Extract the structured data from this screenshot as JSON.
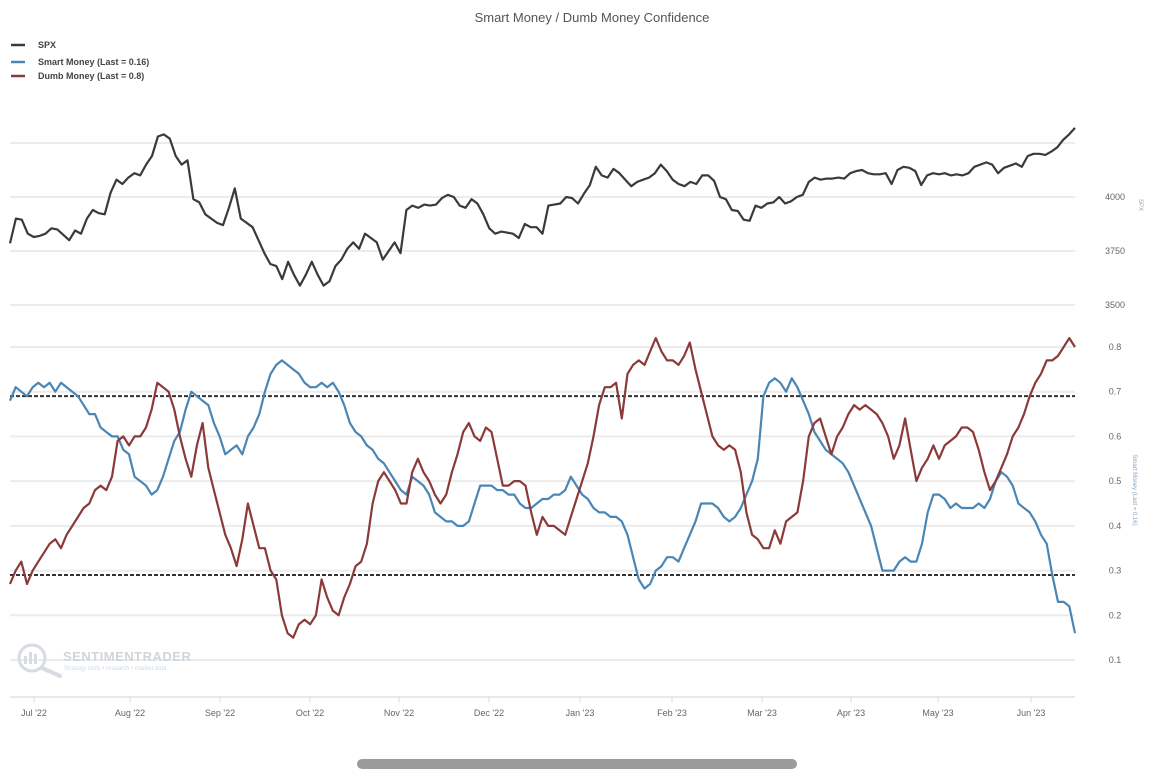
{
  "chart_data": {
    "type": "line",
    "title": "Smart Money / Dumb Money Confidence",
    "legend": {
      "placement": "top-left",
      "entries": [
        {
          "name": "SPX",
          "color": "#3a3a3a"
        },
        {
          "name": "Smart Money (Last = 0.16)",
          "color": "#4a86b5"
        },
        {
          "name": "Dumb Money (Last = 0.8)",
          "color": "#8b3a3a"
        }
      ]
    },
    "x_ticks": [
      "Jul '22",
      "Aug '22",
      "Sep '22",
      "Oct '22",
      "Nov '22",
      "Dec '22",
      "Jan '23",
      "Feb '23",
      "Mar '23",
      "Apr '23",
      "May '23",
      "Jun '23"
    ],
    "x_range": [
      "2022-06-27",
      "2023-06-14"
    ],
    "panels": [
      {
        "name": "SPX",
        "ylim": [
          3450,
          4450
        ],
        "y_ticks": [
          3500,
          3750,
          4000
        ],
        "y_axis_label": "SPX",
        "grid": true,
        "series": [
          {
            "name": "SPX",
            "color": "#3a3a3a",
            "values": [
              3785,
              3900,
              3895,
              3830,
              3815,
              3820,
              3830,
              3855,
              3850,
              3825,
              3800,
              3845,
              3830,
              3900,
              3940,
              3925,
              3920,
              4020,
              4080,
              4060,
              4090,
              4110,
              4100,
              4150,
              4190,
              4280,
              4290,
              4270,
              4190,
              4150,
              4170,
              3990,
              3975,
              3920,
              3900,
              3880,
              3870,
              3950,
              4040,
              3900,
              3880,
              3860,
              3800,
              3740,
              3690,
              3680,
              3620,
              3700,
              3640,
              3590,
              3640,
              3700,
              3640,
              3590,
              3610,
              3680,
              3710,
              3760,
              3790,
              3760,
              3830,
              3810,
              3790,
              3710,
              3750,
              3790,
              3740,
              3940,
              3960,
              3950,
              3965,
              3960,
              3965,
              3995,
              4010,
              4000,
              3960,
              3950,
              3990,
              3970,
              3920,
              3855,
              3830,
              3840,
              3835,
              3830,
              3810,
              3875,
              3860,
              3860,
              3830,
              3960,
              3965,
              3970,
              4000,
              3995,
              3970,
              4015,
              4055,
              4140,
              4100,
              4090,
              4130,
              4110,
              4080,
              4050,
              4070,
              4080,
              4090,
              4110,
              4150,
              4120,
              4080,
              4060,
              4050,
              4070,
              4060,
              4100,
              4100,
              4075,
              4000,
              3990,
              3940,
              3935,
              3895,
              3890,
              3960,
              3950,
              3970,
              3975,
              4000,
              3970,
              3980,
              4000,
              4010,
              4070,
              4090,
              4080,
              4085,
              4085,
              4090,
              4085,
              4110,
              4120,
              4125,
              4110,
              4105,
              4105,
              4110,
              4060,
              4125,
              4140,
              4135,
              4120,
              4055,
              4100,
              4110,
              4105,
              4110,
              4100,
              4105,
              4100,
              4110,
              4140,
              4150,
              4160,
              4150,
              4110,
              4135,
              4145,
              4155,
              4140,
              4190,
              4200,
              4200,
              4195,
              4210,
              4230,
              4265,
              4290,
              4320
            ]
          }
        ]
      },
      {
        "name": "Confidence",
        "ylim": [
          0.05,
          0.87
        ],
        "y_ticks": [
          0.1,
          0.2,
          0.3,
          0.4,
          0.5,
          0.6,
          0.7,
          0.8
        ],
        "y_axis_label": "Smart Money (Last = 0.16)",
        "grid": true,
        "reference_lines": [
          0.69,
          0.29
        ],
        "series": [
          {
            "name": "Smart Money",
            "color": "#4a86b5",
            "values": [
              0.68,
              0.71,
              0.7,
              0.69,
              0.71,
              0.72,
              0.71,
              0.72,
              0.7,
              0.72,
              0.71,
              0.7,
              0.69,
              0.67,
              0.65,
              0.65,
              0.62,
              0.61,
              0.6,
              0.6,
              0.57,
              0.56,
              0.51,
              0.5,
              0.49,
              0.47,
              0.48,
              0.51,
              0.55,
              0.59,
              0.61,
              0.66,
              0.7,
              0.69,
              0.68,
              0.67,
              0.63,
              0.6,
              0.56,
              0.57,
              0.58,
              0.56,
              0.6,
              0.62,
              0.65,
              0.7,
              0.74,
              0.76,
              0.77,
              0.76,
              0.75,
              0.74,
              0.72,
              0.71,
              0.71,
              0.72,
              0.71,
              0.72,
              0.7,
              0.67,
              0.63,
              0.61,
              0.6,
              0.58,
              0.57,
              0.55,
              0.54,
              0.52,
              0.5,
              0.48,
              0.47,
              0.51,
              0.5,
              0.49,
              0.47,
              0.43,
              0.42,
              0.41,
              0.41,
              0.4,
              0.4,
              0.41,
              0.45,
              0.49,
              0.49,
              0.49,
              0.48,
              0.48,
              0.47,
              0.47,
              0.45,
              0.44,
              0.44,
              0.45,
              0.46,
              0.46,
              0.47,
              0.47,
              0.48,
              0.51,
              0.49,
              0.47,
              0.46,
              0.44,
              0.43,
              0.43,
              0.42,
              0.42,
              0.41,
              0.38,
              0.33,
              0.28,
              0.26,
              0.27,
              0.3,
              0.31,
              0.33,
              0.33,
              0.32,
              0.35,
              0.38,
              0.41,
              0.45,
              0.45,
              0.45,
              0.44,
              0.42,
              0.41,
              0.42,
              0.44,
              0.47,
              0.5,
              0.55,
              0.69,
              0.72,
              0.73,
              0.72,
              0.7,
              0.73,
              0.71,
              0.68,
              0.65,
              0.61,
              0.59,
              0.57,
              0.56,
              0.55,
              0.54,
              0.52,
              0.49,
              0.46,
              0.43,
              0.4,
              0.35,
              0.3,
              0.3,
              0.3,
              0.32,
              0.33,
              0.32,
              0.32,
              0.36,
              0.43,
              0.47,
              0.47,
              0.46,
              0.44,
              0.45,
              0.44,
              0.44,
              0.44,
              0.45,
              0.44,
              0.46,
              0.5,
              0.52,
              0.51,
              0.49,
              0.45,
              0.44,
              0.43,
              0.41,
              0.38,
              0.36,
              0.29,
              0.23,
              0.23,
              0.22,
              0.16
            ]
          },
          {
            "name": "Dumb Money",
            "color": "#8b3a3a",
            "values": [
              0.27,
              0.3,
              0.32,
              0.27,
              0.3,
              0.32,
              0.34,
              0.36,
              0.37,
              0.35,
              0.38,
              0.4,
              0.42,
              0.44,
              0.45,
              0.48,
              0.49,
              0.48,
              0.51,
              0.59,
              0.6,
              0.58,
              0.6,
              0.6,
              0.62,
              0.66,
              0.72,
              0.71,
              0.7,
              0.66,
              0.6,
              0.55,
              0.51,
              0.58,
              0.63,
              0.53,
              0.48,
              0.43,
              0.38,
              0.35,
              0.31,
              0.37,
              0.45,
              0.4,
              0.35,
              0.35,
              0.3,
              0.28,
              0.2,
              0.16,
              0.15,
              0.18,
              0.19,
              0.18,
              0.2,
              0.28,
              0.24,
              0.21,
              0.2,
              0.24,
              0.27,
              0.31,
              0.32,
              0.36,
              0.45,
              0.5,
              0.52,
              0.5,
              0.48,
              0.45,
              0.45,
              0.52,
              0.55,
              0.52,
              0.5,
              0.47,
              0.45,
              0.47,
              0.52,
              0.56,
              0.61,
              0.63,
              0.6,
              0.59,
              0.62,
              0.61,
              0.55,
              0.49,
              0.49,
              0.5,
              0.5,
              0.49,
              0.43,
              0.38,
              0.42,
              0.4,
              0.4,
              0.39,
              0.38,
              0.42,
              0.46,
              0.5,
              0.54,
              0.6,
              0.67,
              0.71,
              0.71,
              0.72,
              0.64,
              0.74,
              0.76,
              0.77,
              0.76,
              0.79,
              0.82,
              0.79,
              0.77,
              0.77,
              0.76,
              0.78,
              0.81,
              0.75,
              0.7,
              0.65,
              0.6,
              0.58,
              0.57,
              0.58,
              0.57,
              0.52,
              0.43,
              0.38,
              0.37,
              0.35,
              0.35,
              0.39,
              0.36,
              0.41,
              0.42,
              0.43,
              0.5,
              0.6,
              0.63,
              0.64,
              0.6,
              0.56,
              0.6,
              0.62,
              0.65,
              0.67,
              0.66,
              0.67,
              0.66,
              0.65,
              0.63,
              0.6,
              0.55,
              0.58,
              0.64,
              0.57,
              0.5,
              0.53,
              0.55,
              0.58,
              0.55,
              0.58,
              0.59,
              0.6,
              0.62,
              0.62,
              0.61,
              0.57,
              0.52,
              0.48,
              0.5,
              0.53,
              0.56,
              0.6,
              0.62,
              0.65,
              0.69,
              0.72,
              0.74,
              0.77,
              0.77,
              0.78,
              0.8,
              0.82,
              0.8
            ]
          }
        ]
      }
    ]
  },
  "watermark": {
    "title": "SENTIMENTRADER",
    "subtitle": "Strategy tools • research • market data"
  }
}
